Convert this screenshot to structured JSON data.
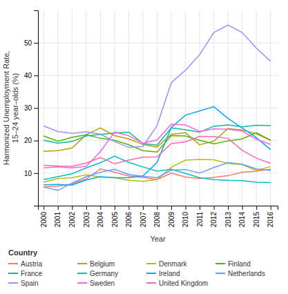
{
  "chart_data": {
    "type": "line",
    "x_label": "Year",
    "y_label": "Harmonized Unemployment Rate,\n15–24 year–olds (%)",
    "legend_title": "Country",
    "legend": "bottom",
    "grid": true,
    "x": [
      2000,
      2001,
      2002,
      2003,
      2004,
      2005,
      2006,
      2007,
      2008,
      2009,
      2010,
      2011,
      2012,
      2013,
      2014,
      2015,
      2016
    ],
    "xlim": [
      1999.6,
      2016.5
    ],
    "xticks": [
      2000,
      2001,
      2002,
      2003,
      2004,
      2005,
      2006,
      2007,
      2008,
      2009,
      2010,
      2011,
      2012,
      2013,
      2014,
      2015,
      2016
    ],
    "ylim": [
      0,
      60
    ],
    "yticks": [
      10,
      20,
      30,
      40,
      50
    ],
    "series": [
      {
        "name": "Austria",
        "color": "#F8766D",
        "values": [
          5.8,
          6.0,
          6.7,
          8.2,
          11.3,
          10.3,
          9.1,
          8.7,
          8.0,
          10.0,
          8.8,
          8.3,
          8.7,
          9.2,
          10.3,
          10.6,
          11.2
        ]
      },
      {
        "name": "Belgium",
        "color": "#C49A00",
        "values": [
          16.7,
          16.9,
          17.7,
          21.8,
          23.9,
          21.5,
          20.5,
          18.8,
          18.0,
          21.9,
          22.4,
          18.7,
          19.8,
          23.7,
          23.2,
          22.1,
          20.1
        ]
      },
      {
        "name": "Denmark",
        "color": "#B5BE00",
        "values": [
          7.2,
          8.3,
          8.6,
          9.5,
          8.8,
          8.6,
          7.8,
          7.5,
          8.0,
          11.8,
          14.0,
          14.2,
          14.1,
          13.0,
          12.6,
          10.8,
          12.0
        ]
      },
      {
        "name": "Finland",
        "color": "#53B400",
        "values": [
          21.4,
          19.8,
          21.0,
          21.8,
          20.7,
          20.1,
          18.7,
          16.9,
          16.5,
          21.5,
          21.4,
          20.1,
          19.0,
          19.9,
          20.5,
          22.4,
          20.1
        ]
      },
      {
        "name": "France",
        "color": "#00C094",
        "values": [
          20.1,
          19.2,
          19.7,
          21.4,
          21.9,
          22.3,
          22.6,
          19.1,
          18.6,
          23.9,
          23.3,
          22.6,
          24.4,
          24.8,
          24.2,
          24.7,
          24.6
        ]
      },
      {
        "name": "Germany",
        "color": "#00BFC4",
        "values": [
          8.0,
          8.9,
          9.8,
          11.6,
          13.2,
          15.2,
          13.3,
          11.9,
          10.6,
          11.2,
          9.9,
          8.6,
          8.0,
          7.8,
          7.7,
          7.2,
          7.1
        ]
      },
      {
        "name": "Ireland",
        "color": "#00A9FF",
        "values": [
          6.4,
          6.5,
          6.3,
          7.9,
          8.9,
          8.6,
          8.6,
          9.1,
          13.3,
          24.0,
          27.8,
          29.1,
          30.4,
          26.8,
          23.9,
          20.9,
          17.2
        ]
      },
      {
        "name": "Netherlands",
        "color": "#619CFF",
        "values": [
          5.7,
          4.7,
          6.9,
          8.9,
          10.3,
          11.2,
          9.6,
          9.0,
          8.6,
          10.9,
          11.1,
          10.0,
          11.7,
          13.2,
          12.7,
          11.3,
          10.8
        ]
      },
      {
        "name": "Spain",
        "color": "#9590FF",
        "values": [
          24.5,
          22.8,
          22.2,
          22.7,
          22.0,
          19.7,
          17.9,
          18.2,
          24.6,
          37.8,
          41.6,
          46.4,
          53.2,
          55.5,
          53.2,
          48.4,
          44.4
        ]
      },
      {
        "name": "Sweden",
        "color": "#F564E3",
        "values": [
          11.6,
          11.9,
          11.6,
          12.1,
          16.6,
          22.6,
          21.5,
          19.2,
          20.2,
          25.0,
          24.8,
          22.8,
          23.6,
          23.5,
          22.9,
          20.4,
          18.8
        ]
      },
      {
        "name": "United Kingdom",
        "color": "#FF64B0",
        "values": [
          12.4,
          12.2,
          12.1,
          13.1,
          14.8,
          12.9,
          14.0,
          14.9,
          15.0,
          19.1,
          19.6,
          21.3,
          21.2,
          20.7,
          17.0,
          14.6,
          13.0
        ]
      }
    ]
  }
}
